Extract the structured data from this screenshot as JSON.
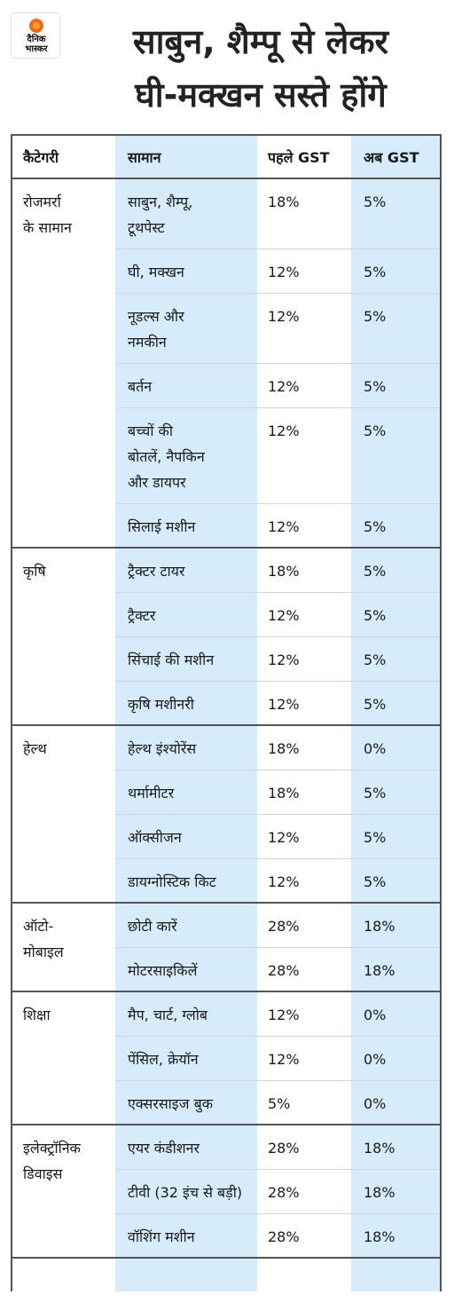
{
  "logo": {
    "line1": "दैनिक",
    "line2": "भास्कर"
  },
  "title_line1": "साबुन, शैम्पू से लेकर",
  "title_line2": "घी-मक्खन सस्ते होंगे",
  "chart_data": {
    "type": "table",
    "columns": [
      "कैटेगरी",
      "सामान",
      "पहले GST",
      "अब GST"
    ],
    "groups": [
      {
        "category": [
          "रोजमर्रा",
          "के सामान"
        ],
        "rows": [
          {
            "item": [
              "साबुन, शैम्पू,",
              "टूथपेस्ट"
            ],
            "before": "18%",
            "after": "5%"
          },
          {
            "item": [
              "घी, मक्खन"
            ],
            "before": "12%",
            "after": "5%"
          },
          {
            "item": [
              "नूडल्स और",
              "नमकीन"
            ],
            "before": "12%",
            "after": "5%"
          },
          {
            "item": [
              "बर्तन"
            ],
            "before": "12%",
            "after": "5%"
          },
          {
            "item": [
              "बच्चों की",
              "बोतलें, नैपकिन",
              "और डायपर"
            ],
            "before": "12%",
            "after": "5%"
          },
          {
            "item": [
              "सिलाई मशीन"
            ],
            "before": "12%",
            "after": "5%"
          }
        ]
      },
      {
        "category": [
          "कृषि"
        ],
        "rows": [
          {
            "item": [
              "ट्रैक्टर टायर"
            ],
            "before": "18%",
            "after": "5%"
          },
          {
            "item": [
              "ट्रैक्टर"
            ],
            "before": "12%",
            "after": "5%"
          },
          {
            "item": [
              "सिंचाई की मशीन"
            ],
            "before": "12%",
            "after": "5%"
          },
          {
            "item": [
              "कृषि मशीनरी"
            ],
            "before": "12%",
            "after": "5%"
          }
        ]
      },
      {
        "category": [
          "हेल्थ"
        ],
        "rows": [
          {
            "item": [
              "हेल्थ इंश्योरेंस"
            ],
            "before": "18%",
            "after": "0%"
          },
          {
            "item": [
              "थर्मामीटर"
            ],
            "before": "18%",
            "after": "5%"
          },
          {
            "item": [
              "ऑक्सीजन"
            ],
            "before": "12%",
            "after": "5%"
          },
          {
            "item": [
              "डायग्नोस्टिक किट"
            ],
            "before": "12%",
            "after": "5%"
          }
        ]
      },
      {
        "category": [
          "ऑटो-",
          "मोबाइल"
        ],
        "rows": [
          {
            "item": [
              "छोटी कारें"
            ],
            "before": "28%",
            "after": "18%"
          },
          {
            "item": [
              "मोटरसाइकिलें"
            ],
            "before": "28%",
            "after": "18%"
          }
        ]
      },
      {
        "category": [
          "शिक्षा"
        ],
        "rows": [
          {
            "item": [
              "मैप, चार्ट, ग्लोब"
            ],
            "before": "12%",
            "after": "0%"
          },
          {
            "item": [
              "पेंसिल, क्रेयॉन"
            ],
            "before": "12%",
            "after": "0%"
          },
          {
            "item": [
              "एक्सरसाइज बुक"
            ],
            "before": "5%",
            "after": "0%"
          }
        ]
      },
      {
        "category": [
          "इलेक्ट्रॉनिक",
          "डिवाइस"
        ],
        "rows": [
          {
            "item": [
              "एयर कंडीशनर"
            ],
            "before": "28%",
            "after": "18%"
          },
          {
            "item": [
              "टीवी (32 इंच से बड़ी)"
            ],
            "before": "28%",
            "after": "18%"
          },
          {
            "item": [
              "वॉशिंग मशीन"
            ],
            "before": "28%",
            "after": "18%"
          }
        ]
      }
    ]
  }
}
